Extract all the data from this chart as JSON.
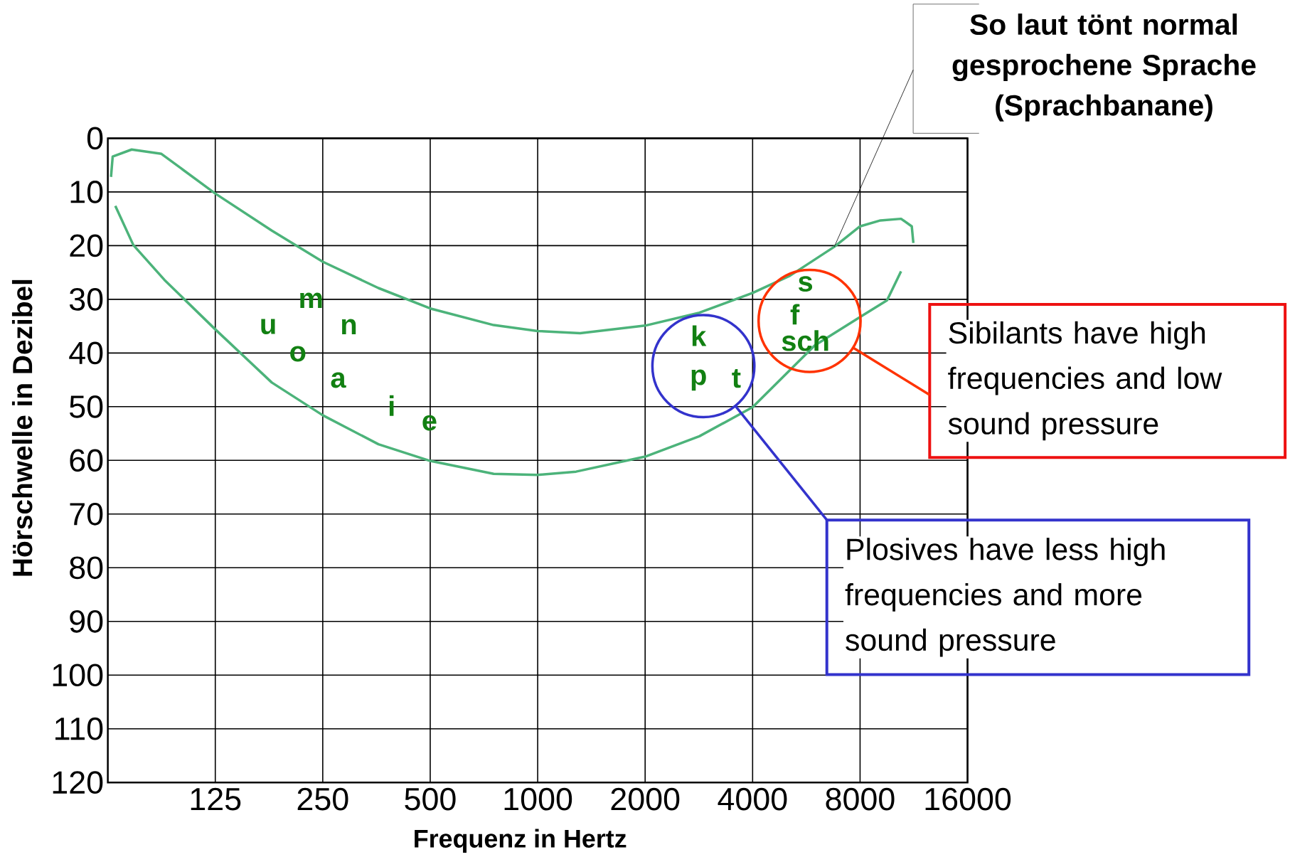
{
  "chart_data": {
    "type": "line",
    "xlabel": "Frequenz in Hertz",
    "ylabel": "Hörschwelle in Dezibel",
    "log": "x",
    "xlim": [
      62.5,
      16000
    ],
    "xticks": [
      125,
      250,
      500,
      1000,
      2000,
      4000,
      8000,
      16000
    ],
    "ylim": [
      120,
      0
    ],
    "yticks": [
      0,
      10,
      20,
      30,
      40,
      50,
      60,
      70,
      80,
      90,
      100,
      110,
      120
    ],
    "grid": true,
    "series": [
      {
        "color": "#4cb37a",
        "x": [
          63.8,
          64.5,
          72.9,
          88.3,
          125,
          180,
          250,
          358,
          500,
          753,
          1000,
          1315,
          2000,
          2838,
          4000,
          5093,
          6780,
          8000,
          9125,
          10420,
          11165,
          11280
        ],
        "values": [
          7.2,
          3.4,
          2.1,
          2.9,
          10.3,
          17.2,
          23.0,
          27.9,
          31.7,
          34.8,
          35.9,
          36.3,
          34.9,
          32.5,
          28.8,
          25.6,
          20.2,
          16.4,
          15.3,
          15.0,
          16.4,
          19.5
        ]
      },
      {
        "color": "#4cb37a",
        "x": [
          65.6,
          73.7,
          90.1,
          125,
          180,
          250,
          358,
          500,
          753,
          1000,
          1281,
          2000,
          2838,
          4000,
          5970,
          8000,
          9520,
          10420
        ],
        "values": [
          12.6,
          19.9,
          26.4,
          35.6,
          45.5,
          51.6,
          57.0,
          60.1,
          62.5,
          62.7,
          62.1,
          59.3,
          55.5,
          50.1,
          38.6,
          33.3,
          30.2,
          24.8
        ]
      }
    ],
    "annotations": [
      "u",
      "m",
      "n",
      "o",
      "a",
      "i",
      "e",
      "k",
      "p",
      "t",
      "s",
      "f",
      "sch",
      "So laut tönt normal gesprochene Sprache (Sprachbanane)",
      "Sibilants have high frequencies and low sound pressure",
      "Plosives have less high frequencies and more sound pressure"
    ]
  }
}
